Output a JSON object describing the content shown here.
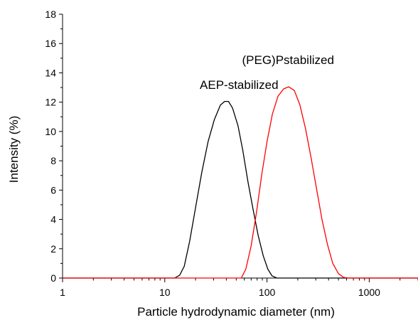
{
  "chart_data": {
    "type": "line",
    "xscale": "log",
    "xlim": [
      1,
      3000
    ],
    "ylim": [
      0,
      18
    ],
    "xticks": [
      1,
      10,
      100,
      1000
    ],
    "xtick_labels": [
      "1",
      "10",
      "100",
      "1000"
    ],
    "yticks": [
      0,
      2,
      4,
      6,
      8,
      10,
      12,
      14,
      16,
      18
    ],
    "ytick_labels": [
      "0",
      "2",
      "4",
      "6",
      "8",
      "10",
      "12",
      "14",
      "16",
      "18"
    ],
    "xlabel": "Particle hydrodynamic diameter (nm)",
    "ylabel": "Intensity (%)",
    "grid": false,
    "series": [
      {
        "name": "AEP-stabilized",
        "color": "#000000",
        "points": [
          [
            1,
            0
          ],
          [
            12.5,
            0
          ],
          [
            14,
            0.2
          ],
          [
            15.5,
            0.8
          ],
          [
            17.5,
            2.5
          ],
          [
            20,
            4.8
          ],
          [
            23,
            7.2
          ],
          [
            26.5,
            9.3
          ],
          [
            30.5,
            10.8
          ],
          [
            35,
            11.8
          ],
          [
            38.5,
            12.05
          ],
          [
            42,
            12.05
          ],
          [
            46,
            11.6
          ],
          [
            52,
            10.4
          ],
          [
            58,
            8.7
          ],
          [
            65,
            6.6
          ],
          [
            73,
            4.7
          ],
          [
            82,
            2.9
          ],
          [
            92,
            1.5
          ],
          [
            102,
            0.6
          ],
          [
            112,
            0.15
          ],
          [
            125,
            0
          ],
          [
            3000,
            0
          ]
        ]
      },
      {
        "name": "(PEG)Pstabilized",
        "color": "#ff0000",
        "points": [
          [
            1,
            0
          ],
          [
            56,
            0
          ],
          [
            62,
            0.6
          ],
          [
            70,
            2.2
          ],
          [
            79,
            4.5
          ],
          [
            89,
            7.1
          ],
          [
            100,
            9.3
          ],
          [
            113,
            11.2
          ],
          [
            128,
            12.4
          ],
          [
            145,
            12.9
          ],
          [
            163,
            13.05
          ],
          [
            185,
            12.8
          ],
          [
            210,
            11.8
          ],
          [
            238,
            10.2
          ],
          [
            270,
            8.2
          ],
          [
            305,
            6.1
          ],
          [
            345,
            4.0
          ],
          [
            390,
            2.3
          ],
          [
            440,
            1.0
          ],
          [
            500,
            0.3
          ],
          [
            560,
            0.05
          ],
          [
            620,
            0
          ],
          [
            3000,
            0
          ]
        ]
      }
    ],
    "annotations": [
      {
        "text": "AEP-stabilized",
        "x": 22,
        "y": 12.9
      },
      {
        "text": "(PEG)Pstabilized",
        "x": 57,
        "y": 14.6
      }
    ]
  }
}
